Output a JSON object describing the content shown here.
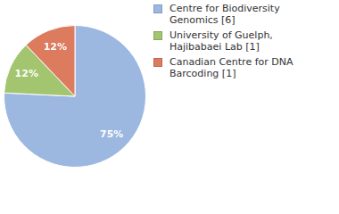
{
  "chart_data": {
    "type": "pie",
    "categories": [
      "Centre for Biodiversity Genomics [6]",
      "University of Guelph, Hajibabaei Lab [1]",
      "Canadian Centre for DNA Barcoding [1]"
    ],
    "values": [
      75,
      12,
      12
    ],
    "value_labels": [
      "75%",
      "12%",
      "12%"
    ],
    "colors": [
      "#9db8e0",
      "#a3c56f",
      "#dd7b5f"
    ],
    "data_labels": true,
    "legend": "top-right"
  }
}
